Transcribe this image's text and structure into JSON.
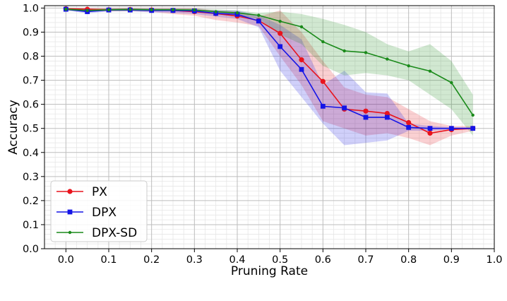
{
  "chart_data": {
    "type": "line",
    "title": "",
    "xlabel": "Pruning Rate",
    "ylabel": "Accuracy",
    "xlim": [
      -0.05,
      1.0
    ],
    "ylim": [
      0.0,
      1.01
    ],
    "xticks": [
      0.0,
      0.1,
      0.2,
      0.3,
      0.4,
      0.5,
      0.6,
      0.7,
      0.8,
      0.9,
      1.0
    ],
    "xtick_labels": [
      "0.0",
      "0.1",
      "0.2",
      "0.3",
      "0.4",
      "0.5",
      "0.6",
      "0.7",
      "0.8",
      "0.9",
      "1.0"
    ],
    "yticks": [
      0.0,
      0.1,
      0.2,
      0.3,
      0.4,
      0.5,
      0.6,
      0.7,
      0.8,
      0.9,
      1.0
    ],
    "ytick_labels": [
      "0.0",
      "0.1",
      "0.2",
      "0.3",
      "0.4",
      "0.5",
      "0.6",
      "0.7",
      "0.8",
      "0.9",
      "1.0"
    ],
    "grid": true,
    "minor_grid": true,
    "legend_position": "bottom-left",
    "x": [
      0.0,
      0.05,
      0.1,
      0.15,
      0.2,
      0.25,
      0.3,
      0.35,
      0.4,
      0.45,
      0.5,
      0.55,
      0.6,
      0.65,
      0.7,
      0.75,
      0.8,
      0.85,
      0.9,
      0.95
    ],
    "series": [
      {
        "name": "PX",
        "color": "#e8141d",
        "marker": "circle",
        "values": [
          0.997,
          0.995,
          0.993,
          0.994,
          0.992,
          0.99,
          0.985,
          0.977,
          0.967,
          0.948,
          0.895,
          0.785,
          0.695,
          0.58,
          0.572,
          0.562,
          0.524,
          0.48,
          0.495,
          0.5
        ],
        "lower": [
          0.99,
          0.988,
          0.986,
          0.987,
          0.984,
          0.975,
          0.968,
          0.95,
          0.94,
          0.925,
          0.8,
          0.68,
          0.53,
          0.5,
          0.47,
          0.48,
          0.46,
          0.43,
          0.47,
          0.49
        ],
        "upper": [
          1.0,
          1.0,
          1.0,
          1.0,
          1.0,
          1.0,
          1.0,
          0.99,
          0.985,
          0.965,
          0.99,
          0.9,
          0.78,
          0.67,
          0.64,
          0.63,
          0.58,
          0.53,
          0.51,
          0.51
        ]
      },
      {
        "name": "DPX",
        "color": "#1414e6",
        "marker": "square",
        "values": [
          0.995,
          0.985,
          0.992,
          0.992,
          0.99,
          0.99,
          0.988,
          0.978,
          0.974,
          0.946,
          0.84,
          0.745,
          0.592,
          0.585,
          0.546,
          0.546,
          0.504,
          0.5,
          0.5,
          0.5
        ],
        "lower": [
          0.99,
          0.978,
          0.986,
          0.986,
          0.982,
          0.98,
          0.975,
          0.965,
          0.955,
          0.92,
          0.74,
          0.63,
          0.52,
          0.43,
          0.44,
          0.45,
          0.49,
          0.49,
          0.495,
          0.495
        ],
        "upper": [
          1.0,
          0.992,
          0.998,
          0.998,
          0.997,
          0.997,
          0.996,
          0.99,
          0.99,
          0.97,
          0.93,
          0.87,
          0.68,
          0.74,
          0.65,
          0.645,
          0.52,
          0.51,
          0.505,
          0.505
        ]
      },
      {
        "name": "DPX-SD",
        "color": "#1a8a1a",
        "marker": "dot",
        "values": [
          0.995,
          0.99,
          0.993,
          0.994,
          0.993,
          0.993,
          0.992,
          0.985,
          0.98,
          0.97,
          0.945,
          0.922,
          0.86,
          0.822,
          0.815,
          0.788,
          0.76,
          0.738,
          0.69,
          0.555
        ],
        "lower": [
          0.99,
          0.984,
          0.988,
          0.989,
          0.988,
          0.988,
          0.986,
          0.976,
          0.97,
          0.955,
          0.89,
          0.85,
          0.76,
          0.72,
          0.73,
          0.72,
          0.7,
          0.64,
          0.58,
          0.47
        ],
        "upper": [
          1.0,
          0.996,
          0.998,
          0.999,
          0.998,
          0.998,
          0.998,
          0.995,
          0.99,
          0.98,
          0.985,
          0.975,
          0.955,
          0.93,
          0.9,
          0.85,
          0.82,
          0.85,
          0.78,
          0.64
        ]
      }
    ]
  }
}
